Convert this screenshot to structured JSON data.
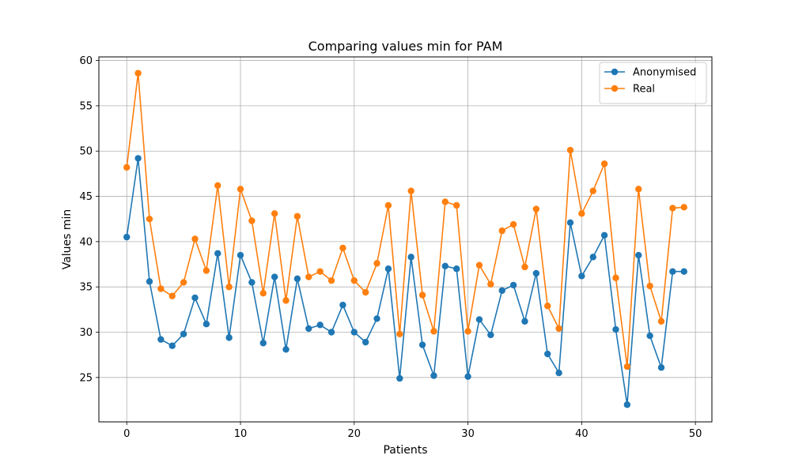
{
  "chart_data": {
    "type": "line",
    "title": "Comparing values min for PAM",
    "xlabel": "Patients",
    "ylabel": "Values min",
    "xlim": [
      -2.45,
      51.45
    ],
    "ylim": [
      20.1,
      60.4
    ],
    "xticks": [
      0,
      10,
      20,
      30,
      40,
      50
    ],
    "yticks": [
      25,
      30,
      35,
      40,
      45,
      50,
      55,
      60
    ],
    "grid": true,
    "legend_position": "top-right",
    "x": [
      0,
      1,
      2,
      3,
      4,
      5,
      6,
      7,
      8,
      9,
      10,
      11,
      12,
      13,
      14,
      15,
      16,
      17,
      18,
      19,
      20,
      21,
      22,
      23,
      24,
      25,
      26,
      27,
      28,
      29,
      30,
      31,
      32,
      33,
      34,
      35,
      36,
      37,
      38,
      39,
      40,
      41,
      42,
      43,
      44,
      45,
      46,
      47,
      48,
      49
    ],
    "series": [
      {
        "name": "Anonymised",
        "color": "#1f77b4",
        "values": [
          40.5,
          49.2,
          35.6,
          29.2,
          28.5,
          29.8,
          33.8,
          30.9,
          38.7,
          29.4,
          38.5,
          35.5,
          28.8,
          36.1,
          28.1,
          35.9,
          30.4,
          30.8,
          30.0,
          33.0,
          30.0,
          28.9,
          31.5,
          37.0,
          24.9,
          38.3,
          28.6,
          25.2,
          37.3,
          37.0,
          25.1,
          31.4,
          29.7,
          34.6,
          35.2,
          31.2,
          36.5,
          27.6,
          25.5,
          42.1,
          36.2,
          38.3,
          40.7,
          30.3,
          22.0,
          38.5,
          29.6,
          26.1,
          36.7,
          36.7
        ]
      },
      {
        "name": "Real",
        "color": "#ff7f0e",
        "values": [
          48.2,
          58.6,
          42.5,
          34.8,
          34.0,
          35.5,
          40.3,
          36.8,
          46.2,
          35.0,
          45.8,
          42.3,
          34.3,
          43.1,
          33.5,
          42.8,
          36.1,
          36.7,
          35.7,
          39.3,
          35.7,
          34.4,
          37.6,
          44.0,
          29.8,
          45.6,
          34.1,
          30.1,
          44.4,
          44.0,
          30.1,
          37.4,
          35.3,
          41.2,
          41.9,
          37.2,
          43.6,
          32.9,
          30.4,
          50.1,
          43.1,
          45.6,
          48.6,
          36.0,
          26.2,
          45.8,
          35.1,
          31.2,
          43.7,
          43.8
        ]
      }
    ]
  }
}
